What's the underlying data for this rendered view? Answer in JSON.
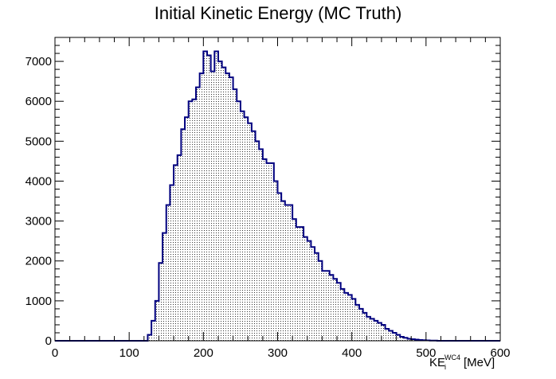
{
  "chart_data": {
    "type": "bar",
    "title": "Initial Kinetic Energy (MC Truth)",
    "xlabel": {
      "main": "KE",
      "sub": "i",
      "sup": "WC4",
      "unit": "[MeV]"
    },
    "ylabel": "",
    "xlim": [
      0,
      600
    ],
    "ylim": [
      0,
      7600
    ],
    "xticks": [
      0,
      100,
      200,
      300,
      400,
      500,
      600
    ],
    "yticks": [
      0,
      1000,
      2000,
      3000,
      4000,
      5000,
      6000,
      7000
    ],
    "bin_width": 5,
    "bin_start": 0,
    "values": [
      0,
      0,
      0,
      0,
      0,
      0,
      0,
      0,
      0,
      0,
      0,
      0,
      0,
      0,
      0,
      0,
      0,
      0,
      0,
      0,
      0,
      0,
      0,
      0,
      0,
      150,
      500,
      1000,
      1950,
      2700,
      3400,
      3900,
      4400,
      4650,
      5300,
      5600,
      6000,
      6050,
      6350,
      6700,
      7250,
      7150,
      6750,
      7250,
      7000,
      6850,
      6700,
      6600,
      6300,
      6000,
      5750,
      5600,
      5450,
      5250,
      5000,
      4800,
      4550,
      4450,
      4450,
      4000,
      3700,
      3500,
      3400,
      3400,
      3050,
      2850,
      2850,
      2600,
      2500,
      2350,
      2200,
      2000,
      1750,
      1750,
      1650,
      1550,
      1450,
      1300,
      1200,
      1150,
      1050,
      900,
      800,
      700,
      600,
      550,
      500,
      450,
      400,
      300,
      250,
      200,
      150,
      100,
      75,
      50,
      40,
      30,
      20,
      15,
      10,
      5,
      5,
      0,
      0,
      0,
      0,
      0,
      0,
      0,
      0,
      0,
      0,
      0,
      0,
      0,
      0,
      0,
      0,
      0
    ],
    "line_color": "#00007f",
    "fill_pattern": "dotted",
    "legend": "none",
    "grid": false
  }
}
